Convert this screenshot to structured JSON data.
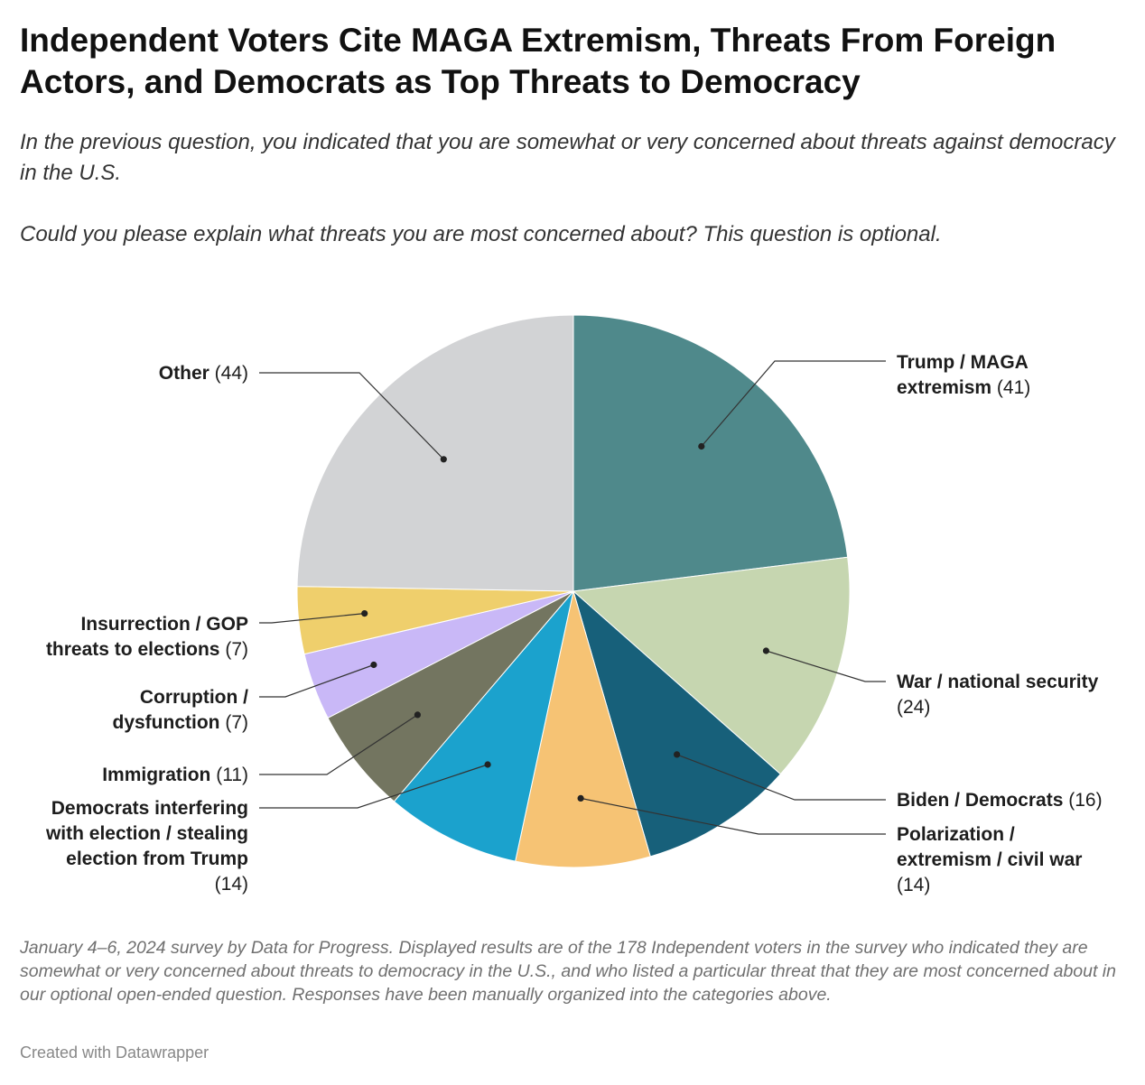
{
  "title": "Independent Voters Cite MAGA Extremism, Threats From Foreign Actors, and Democrats as Top Threats to Democracy",
  "subtitle": {
    "line1": "In the previous question, you indicated that you are somewhat or very concerned about threats against democracy in the U.S.",
    "line2": "Could you please explain what threats you are most concerned about? This question is optional."
  },
  "notes": "January 4–6, 2024 survey by Data for Progress. Displayed results are of the 178 Independent voters in the survey who indicated they are somewhat or very concerned about threats to democracy in the U.S., and who listed a particular threat that they are most concerned about in our optional open-ended question. Responses have been manually organized into the categories above.",
  "credit": "Created with Datawrapper",
  "chart_data": {
    "type": "pie",
    "total": 178,
    "slices": [
      {
        "label": "Trump / MAGA extremism",
        "value": 41,
        "color": "#4f898b"
      },
      {
        "label": "War / national security",
        "value": 24,
        "color": "#c6d6b0"
      },
      {
        "label": "Biden / Democrats",
        "value": 16,
        "color": "#17607a"
      },
      {
        "label": "Polarization / extremism / civil war",
        "value": 14,
        "color": "#f6c374"
      },
      {
        "label": "Democrats interfering with election / stealing election from Trump",
        "value": 14,
        "color": "#1ba2cd"
      },
      {
        "label": "Immigration",
        "value": 11,
        "color": "#737560"
      },
      {
        "label": "Corruption / dysfunction",
        "value": 7,
        "color": "#c9b8f7"
      },
      {
        "label": "Insurrection / GOP threats to elections",
        "value": 7,
        "color": "#efcf6c"
      },
      {
        "label": "Other",
        "value": 44,
        "color": "#d2d3d5"
      }
    ],
    "labels": [
      {
        "side": "right",
        "lines": [
          [
            {
              "t": "Trump / MAGA",
              "b": 1
            }
          ],
          [
            {
              "t": "extremism",
              "b": 1
            },
            {
              "t": " (41)",
              "b": 0
            }
          ]
        ]
      },
      {
        "side": "right",
        "lines": [
          [
            {
              "t": "War / national security",
              "b": 1
            }
          ],
          [
            {
              "t": "(24)",
              "b": 0
            }
          ]
        ]
      },
      {
        "side": "right",
        "lines": [
          [
            {
              "t": "Biden / Democrats",
              "b": 1
            },
            {
              "t": " (16)",
              "b": 0
            }
          ]
        ]
      },
      {
        "side": "right",
        "lines": [
          [
            {
              "t": "Polarization /",
              "b": 1
            }
          ],
          [
            {
              "t": "extremism / civil war",
              "b": 1
            }
          ],
          [
            {
              "t": "(14)",
              "b": 0
            }
          ]
        ]
      },
      {
        "side": "left",
        "lines": [
          [
            {
              "t": "Democrats interfering",
              "b": 1
            }
          ],
          [
            {
              "t": "with election / stealing",
              "b": 1
            }
          ],
          [
            {
              "t": "election from Trump",
              "b": 1
            }
          ],
          [
            {
              "t": "(14)",
              "b": 0
            }
          ]
        ]
      },
      {
        "side": "left",
        "lines": [
          [
            {
              "t": "Immigration",
              "b": 1
            },
            {
              "t": " (11)",
              "b": 0
            }
          ]
        ]
      },
      {
        "side": "left",
        "lines": [
          [
            {
              "t": "Corruption /",
              "b": 1
            }
          ],
          [
            {
              "t": "dysfunction",
              "b": 1
            },
            {
              "t": " (7)",
              "b": 0
            }
          ]
        ]
      },
      {
        "side": "left",
        "lines": [
          [
            {
              "t": "Insurrection / GOP",
              "b": 1
            }
          ],
          [
            {
              "t": "threats to elections",
              "b": 1
            },
            {
              "t": " (7)",
              "b": 0
            }
          ]
        ]
      },
      {
        "side": "left",
        "lines": [
          [
            {
              "t": "Other",
              "b": 1
            },
            {
              "t": " (44)",
              "b": 0
            }
          ]
        ]
      }
    ]
  }
}
